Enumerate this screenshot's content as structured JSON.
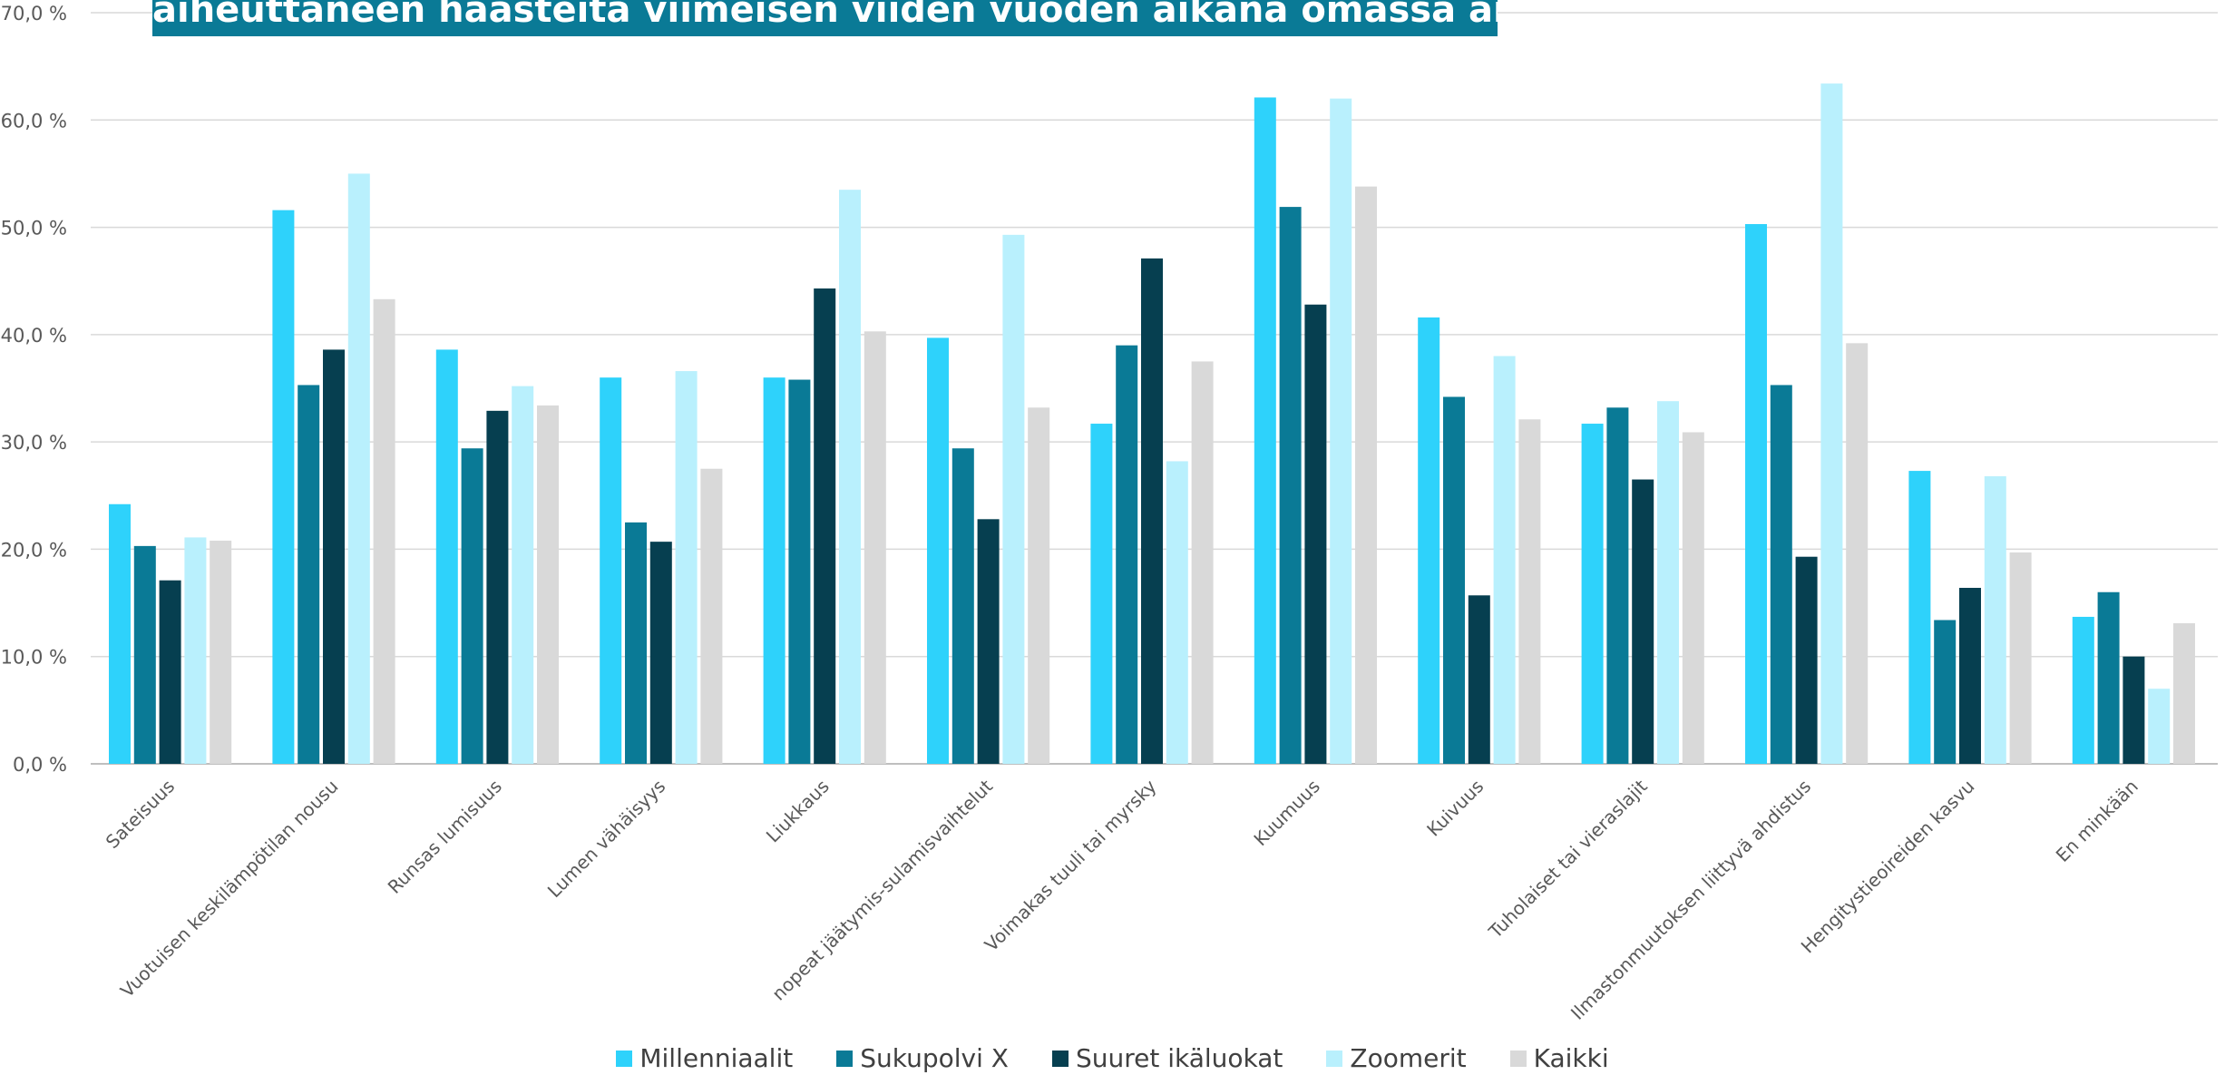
{
  "title": "aiheuttaneen haasteita viimeisen viiden vuoden aikana omassa arjessa?",
  "chart_data": {
    "type": "bar",
    "title": "aiheuttaneen haasteita viimeisen viiden vuoden aikana omassa arjessa?",
    "xlabel": "",
    "ylabel": "",
    "ylim": [
      0,
      70
    ],
    "yticks": [
      "0,0 %",
      "10,0 %",
      "20,0 %",
      "30,0 %",
      "40,0 %",
      "50,0 %",
      "60,0 %",
      "70,0 %"
    ],
    "grid": true,
    "legend_position": "bottom",
    "categories": [
      "Sateisuus",
      "Vuotuisen keskilämpötilan nousu",
      "Runsas lumisuus",
      "Lumen vähäisyys",
      "Liukkaus",
      "nopeat jäätymis-sulamisvaihtelut",
      "Voimakas tuuli tai myrsky",
      "Kuumuus",
      "Kuivuus",
      "Tuholaiset tai vieraslajit",
      "Ilmastonmuutoksen liittyvä ahdistus",
      "Hengitystieoireiden kasvu",
      "En minkään"
    ],
    "series": [
      {
        "name": "Millenniaalit",
        "color": "#2ed2fb",
        "values": [
          24.2,
          51.6,
          38.6,
          36.0,
          36.0,
          39.7,
          31.7,
          62.1,
          41.6,
          31.7,
          50.3,
          27.3,
          13.7
        ]
      },
      {
        "name": "Sukupolvi X",
        "color": "#0a7a96",
        "values": [
          20.3,
          35.3,
          29.4,
          22.5,
          35.8,
          29.4,
          39.0,
          51.9,
          34.2,
          33.2,
          35.3,
          13.4,
          16.0
        ]
      },
      {
        "name": "Suuret ikäluokat",
        "color": "#063f50",
        "values": [
          17.1,
          38.6,
          32.9,
          20.7,
          44.3,
          22.8,
          47.1,
          42.8,
          15.7,
          26.5,
          19.3,
          16.4,
          10.0
        ]
      },
      {
        "name": "Zoomerit",
        "color": "#b9f0fd",
        "values": [
          21.1,
          55.0,
          35.2,
          36.6,
          53.5,
          49.3,
          28.2,
          62.0,
          38.0,
          33.8,
          63.4,
          26.8,
          7.0
        ]
      },
      {
        "name": "Kaikki",
        "color": "#d9d9d9",
        "values": [
          20.8,
          43.3,
          33.4,
          27.5,
          40.3,
          33.2,
          37.5,
          53.8,
          32.1,
          30.9,
          39.2,
          19.7,
          13.1
        ]
      }
    ]
  }
}
